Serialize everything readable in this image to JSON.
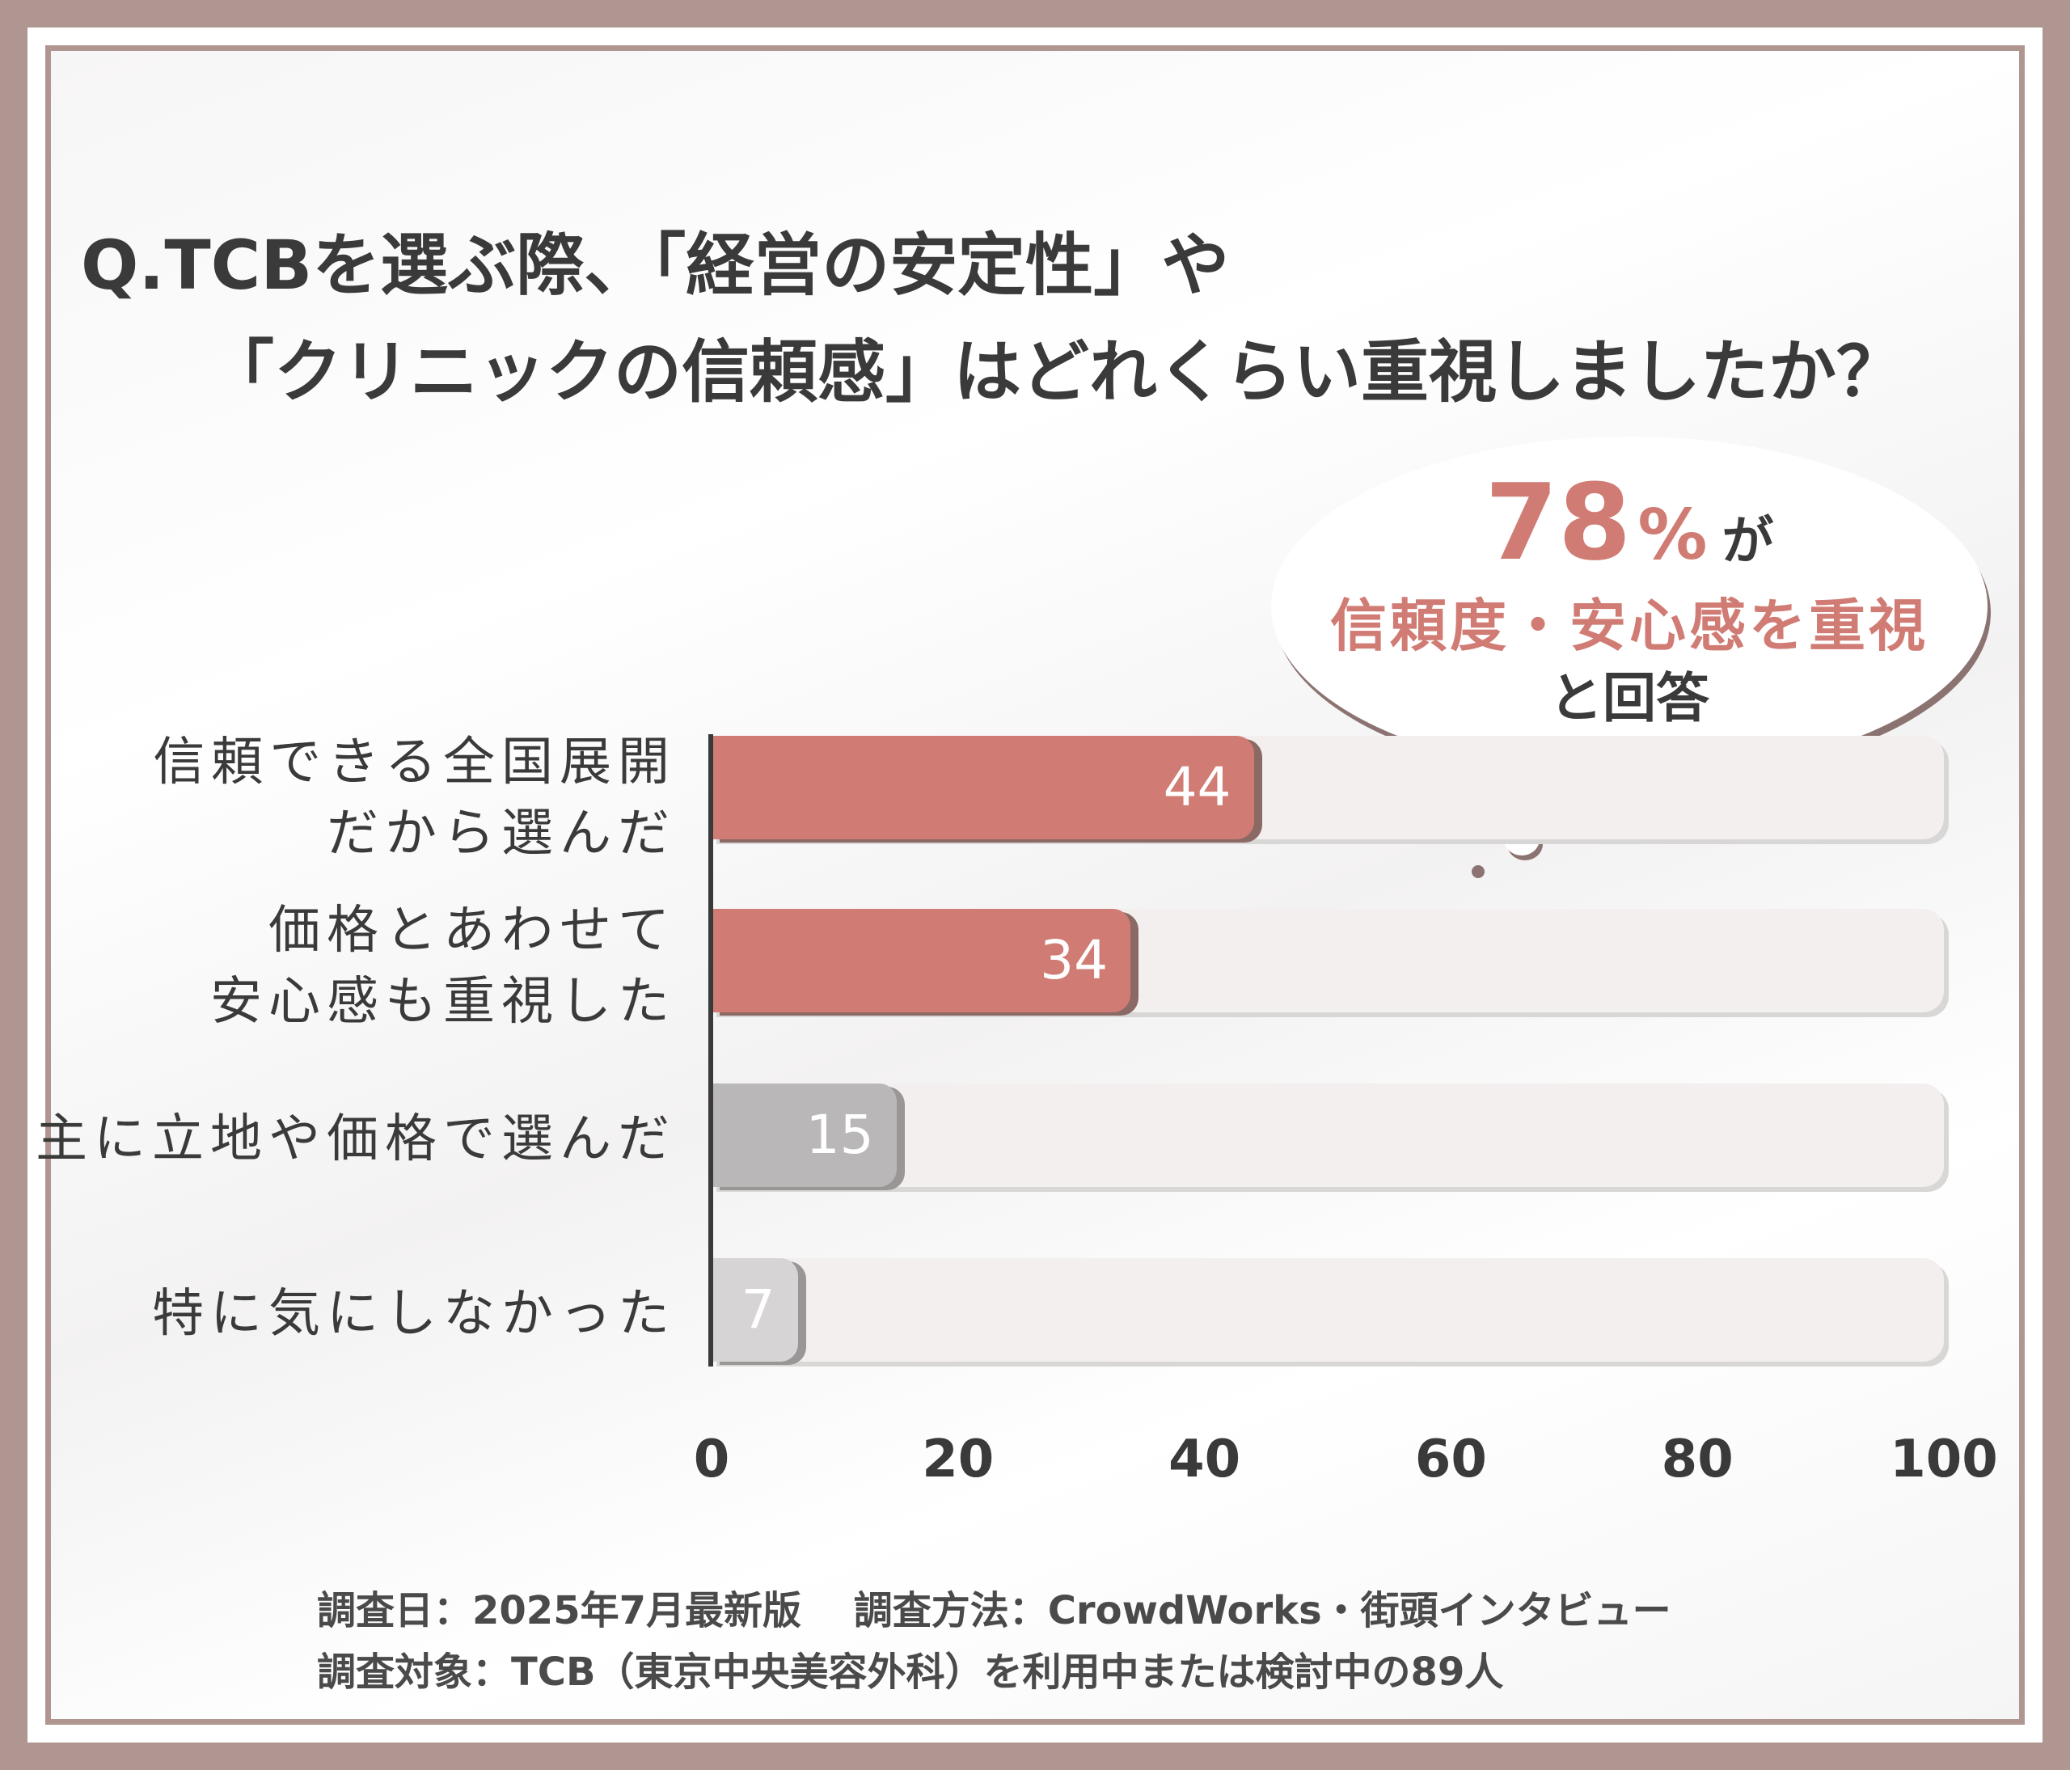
{
  "title": {
    "line1": "Q.TCBを選ぶ際、「経営の安定性」や",
    "line2": "「クリニックの信頼感」はどれくらい重視しましたか？"
  },
  "bubble": {
    "percent": "78",
    "unit": "%",
    "ga": "が",
    "line2": "信頼度・安心感を重視",
    "line3": "と回答"
  },
  "colors": {
    "accent": "#d07c74",
    "gray": "#b9b7b7",
    "light_gray": "#d6d4d4",
    "track": "#f2efee",
    "frame": "#b09690"
  },
  "chart_data": {
    "type": "bar",
    "orientation": "horizontal",
    "categories": [
      [
        "信頼できる全国展開",
        "だから選んだ"
      ],
      [
        "価格とあわせて",
        "安心感も重視した"
      ],
      [
        "主に立地や価格で選んだ"
      ],
      [
        "特に気にしなかった"
      ]
    ],
    "values": [
      44,
      34,
      15,
      7
    ],
    "bar_colors": [
      "#d07c74",
      "#d07c74",
      "#b9b7b7",
      "#d6d4d4"
    ],
    "xlim": [
      0,
      100
    ],
    "xticks": [
      "0",
      "20",
      "40",
      "60",
      "80",
      "100"
    ],
    "grid": false
  },
  "footer": {
    "line1": "調査日：2025年7月最新版　 調査方法：CrowdWorks・街頭インタビュー",
    "line2": "調査対象：TCB（東京中央美容外科）を利用中または検討中の89人"
  }
}
